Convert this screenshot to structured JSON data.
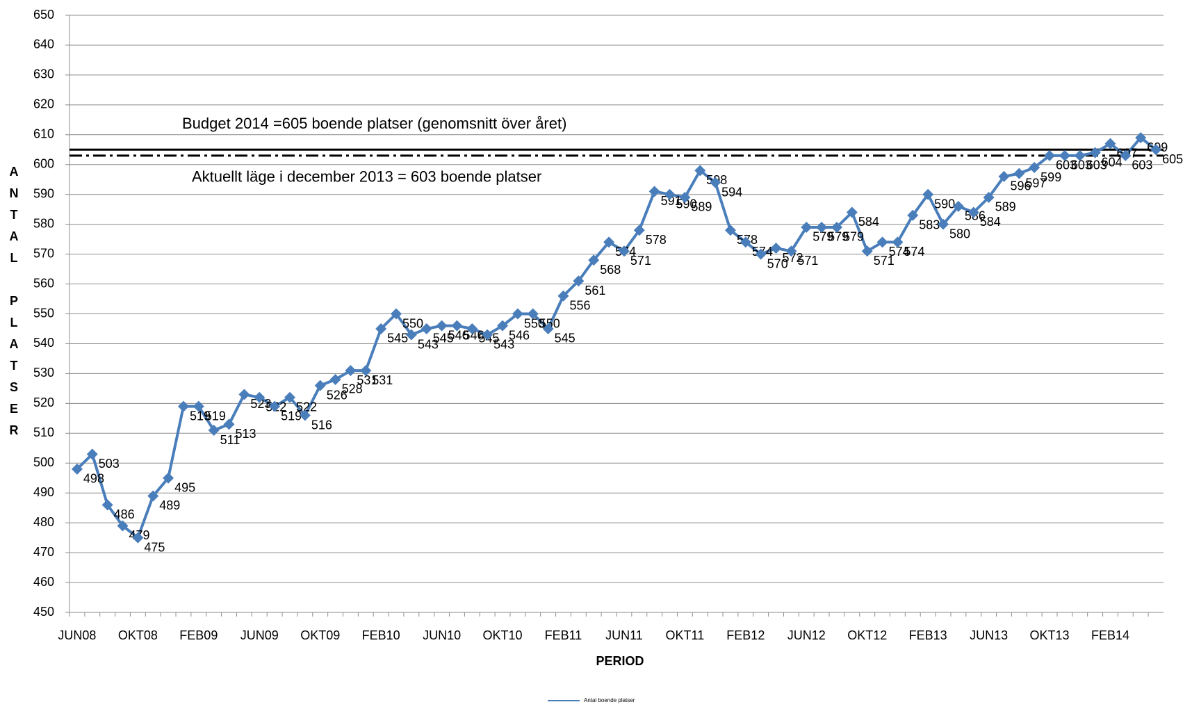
{
  "chart_data": {
    "type": "line",
    "categories": [
      "JUN08",
      null,
      null,
      null,
      "OKT08",
      null,
      null,
      null,
      "FEB09",
      null,
      null,
      null,
      "JUN09",
      null,
      null,
      null,
      "OKT09",
      null,
      null,
      null,
      "FEB10",
      null,
      null,
      null,
      "JUN10",
      null,
      null,
      null,
      "OKT10",
      null,
      null,
      null,
      "FEB11",
      null,
      null,
      null,
      "JUN11",
      null,
      null,
      null,
      "OKT11",
      null,
      null,
      null,
      "FEB12",
      null,
      null,
      null,
      "JUN12",
      null,
      null,
      null,
      "OKT12",
      null,
      null,
      null,
      "FEB13",
      null,
      null,
      null,
      "JUN13",
      null,
      null,
      null,
      "OKT13",
      null,
      null,
      null,
      "FEB14",
      null,
      null,
      null
    ],
    "series": [
      {
        "name": "Antal boende platser",
        "color": "#4a7ebb",
        "values": [
          498,
          503,
          486,
          479,
          475,
          489,
          495,
          519,
          519,
          511,
          513,
          523,
          522,
          519,
          522,
          516,
          526,
          528,
          531,
          531,
          545,
          550,
          543,
          545,
          546,
          546,
          545,
          543,
          546,
          550,
          550,
          545,
          556,
          561,
          568,
          574,
          571,
          578,
          591,
          590,
          589,
          598,
          594,
          578,
          574,
          570,
          572,
          571,
          579,
          579,
          579,
          584,
          571,
          574,
          574,
          583,
          590,
          580,
          586,
          584,
          589,
          596,
          597,
          599,
          603,
          603,
          603,
          604,
          607,
          603,
          609,
          605
        ]
      }
    ],
    "reference_lines": [
      {
        "value": 605,
        "label": "Budget 2014 =605 boende platser (genomsnitt över året)",
        "style": "solid"
      },
      {
        "value": 603,
        "label": "Aktuellt läge i december 2013 = 603 boende platser",
        "style": "dashdot"
      }
    ],
    "ylim": [
      450,
      650
    ],
    "yticks": [
      450,
      460,
      470,
      480,
      490,
      500,
      510,
      520,
      530,
      540,
      550,
      560,
      570,
      580,
      590,
      600,
      610,
      620,
      630,
      640,
      650
    ],
    "xlabel": "PERIOD",
    "ylabel": "ANTAL PLATSER",
    "grid": true
  }
}
